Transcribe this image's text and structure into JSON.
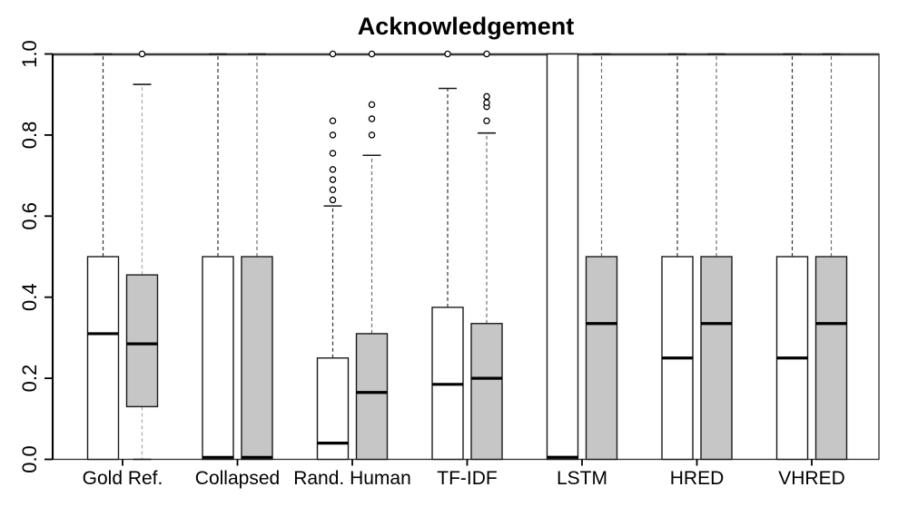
{
  "title": "Acknowledgement",
  "colors": {
    "background": "#ffffff",
    "white_box_fill": "#ffffff",
    "gray_box_fill": "#c6c6c6",
    "box_border": "#1a1a1a",
    "median": "#000000",
    "whisker_white_series": "#333333",
    "whisker_gray_series": "#6e6e6e",
    "frame": "#2e2e2e",
    "top_frame": "#3c3c3c"
  },
  "chart_data": {
    "type": "boxplot",
    "title": "Acknowledgement",
    "xlabel": "",
    "ylabel": "",
    "ylim": [
      0,
      1
    ],
    "yticks": [
      0,
      0.2,
      0.4,
      0.6,
      0.8,
      1.0
    ],
    "grid": false,
    "legend": "none",
    "categories": [
      "Gold Ref.",
      "Collapsed",
      "Rand. Human",
      "TF-IDF",
      "LSTM",
      "HRED",
      "VHRED"
    ],
    "series": [
      {
        "name": "white",
        "fill": "#ffffff",
        "boxes": [
          {
            "category": "Gold Ref.",
            "whisker_low": 0,
            "q1": 0,
            "median": 0.31,
            "q3": 0.5,
            "whisker_high": 1.0,
            "outliers": []
          },
          {
            "category": "Collapsed",
            "whisker_low": 0,
            "q1": 0,
            "median": 0.0,
            "q3": 0.5,
            "whisker_high": 1.0,
            "outliers": []
          },
          {
            "category": "Rand. Human",
            "whisker_low": 0,
            "q1": 0,
            "median": 0.04,
            "q3": 0.25,
            "whisker_high": 0.625,
            "outliers": [
              0.64,
              0.665,
              0.69,
              0.715,
              0.755,
              0.8,
              0.835,
              1.0
            ]
          },
          {
            "category": "TF-IDF",
            "whisker_low": 0,
            "q1": 0,
            "median": 0.185,
            "q3": 0.375,
            "whisker_high": 0.915,
            "outliers": [
              1.0
            ]
          },
          {
            "category": "LSTM",
            "whisker_low": 0,
            "q1": 0,
            "median": 0.005,
            "q3": 1.0,
            "whisker_high": 1.0,
            "outliers": []
          },
          {
            "category": "HRED",
            "whisker_low": 0,
            "q1": 0,
            "median": 0.25,
            "q3": 0.5,
            "whisker_high": 1.0,
            "outliers": []
          },
          {
            "category": "VHRED",
            "whisker_low": 0,
            "q1": 0,
            "median": 0.25,
            "q3": 0.5,
            "whisker_high": 1.0,
            "outliers": []
          }
        ]
      },
      {
        "name": "gray",
        "fill": "#c6c6c6",
        "boxes": [
          {
            "category": "Gold Ref.",
            "whisker_low": 0,
            "q1": 0.13,
            "median": 0.285,
            "q3": 0.455,
            "whisker_high": 0.925,
            "outliers": [
              1.0
            ],
            "whisker_color": "#aaaaaa"
          },
          {
            "category": "Collapsed",
            "whisker_low": 0,
            "q1": 0,
            "median": 0.0,
            "q3": 0.5,
            "whisker_high": 1.0,
            "outliers": []
          },
          {
            "category": "Rand. Human",
            "whisker_low": 0,
            "q1": 0,
            "median": 0.165,
            "q3": 0.31,
            "whisker_high": 0.75,
            "outliers": [
              0.8,
              0.84,
              0.875,
              1.0
            ]
          },
          {
            "category": "TF-IDF",
            "whisker_low": 0,
            "q1": 0,
            "median": 0.2,
            "q3": 0.335,
            "whisker_high": 0.805,
            "outliers": [
              0.835,
              0.87,
              0.88,
              0.895,
              1.0
            ]
          },
          {
            "category": "LSTM",
            "whisker_low": 0,
            "q1": 0,
            "median": 0.335,
            "q3": 0.5,
            "whisker_high": 1.0,
            "outliers": []
          },
          {
            "category": "HRED",
            "whisker_low": 0,
            "q1": 0,
            "median": 0.335,
            "q3": 0.5,
            "whisker_high": 1.0,
            "outliers": []
          },
          {
            "category": "VHRED",
            "whisker_low": 0,
            "q1": 0,
            "median": 0.335,
            "q3": 0.5,
            "whisker_high": 1.0,
            "outliers": []
          }
        ]
      }
    ]
  }
}
